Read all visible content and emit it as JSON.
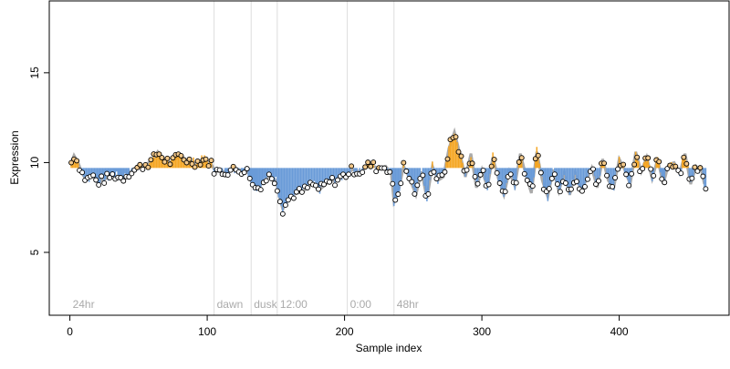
{
  "chart_data": {
    "type": "scatter",
    "xlabel": "Sample index",
    "ylabel": "Expression",
    "xlim": [
      -15,
      480
    ],
    "ylim": [
      1.5,
      19
    ],
    "x_ticks": [
      0,
      100,
      200,
      300,
      400
    ],
    "y_ticks": [
      5,
      10,
      15
    ],
    "baseline": 9.7,
    "regions": [
      {
        "label": "24hr",
        "x": 0
      },
      {
        "label": "dawn",
        "x": 105
      },
      {
        "label": "dusk",
        "x": 132
      },
      {
        "label": "12:00",
        "x": 151
      },
      {
        "label": "0:00",
        "x": 202
      },
      {
        "label": "48hr",
        "x": 236
      }
    ],
    "colors": {
      "above": "#f5a623",
      "below": "#6a9bd8",
      "smooth": "#aaaaaa",
      "grid": "#dddddd",
      "point_fill": "#f4c98a"
    },
    "anchors": [
      [
        1,
        10.0
      ],
      [
        3,
        10.4
      ],
      [
        6,
        10.0
      ],
      [
        9,
        9.4
      ],
      [
        12,
        9.0
      ],
      [
        16,
        9.3
      ],
      [
        20,
        8.9
      ],
      [
        26,
        9.1
      ],
      [
        32,
        9.3
      ],
      [
        38,
        9.1
      ],
      [
        44,
        9.5
      ],
      [
        50,
        9.7
      ],
      [
        55,
        9.9
      ],
      [
        60,
        10.1
      ],
      [
        64,
        10.6
      ],
      [
        68,
        10.2
      ],
      [
        74,
        10.0
      ],
      [
        80,
        10.4
      ],
      [
        86,
        10.1
      ],
      [
        92,
        10.0
      ],
      [
        98,
        10.2
      ],
      [
        103,
        9.9
      ],
      [
        106,
        9.5
      ],
      [
        112,
        9.5
      ],
      [
        120,
        9.6
      ],
      [
        128,
        9.6
      ],
      [
        131,
        9.3
      ],
      [
        133,
        8.7
      ],
      [
        137,
        8.6
      ],
      [
        142,
        9.0
      ],
      [
        146,
        9.3
      ],
      [
        150,
        9.0
      ],
      [
        152,
        8.3
      ],
      [
        155,
        7.4
      ],
      [
        158,
        7.8
      ],
      [
        162,
        8.2
      ],
      [
        170,
        8.4
      ],
      [
        176,
        8.8
      ],
      [
        182,
        8.5
      ],
      [
        188,
        8.9
      ],
      [
        194,
        9.0
      ],
      [
        200,
        9.3
      ],
      [
        206,
        9.6
      ],
      [
        212,
        9.5
      ],
      [
        218,
        9.9
      ],
      [
        224,
        9.7
      ],
      [
        230,
        9.8
      ],
      [
        234,
        9.4
      ],
      [
        236,
        7.8
      ],
      [
        239,
        8.3
      ],
      [
        243,
        9.8
      ],
      [
        247,
        9.2
      ],
      [
        252,
        8.2
      ],
      [
        256,
        9.5
      ],
      [
        260,
        8.0
      ],
      [
        264,
        9.8
      ],
      [
        268,
        9.0
      ],
      [
        272,
        9.2
      ],
      [
        276,
        10.8
      ],
      [
        280,
        11.7
      ],
      [
        284,
        10.5
      ],
      [
        288,
        9.2
      ],
      [
        292,
        10.5
      ],
      [
        296,
        8.6
      ],
      [
        300,
        9.6
      ],
      [
        304,
        8.6
      ],
      [
        308,
        10.3
      ],
      [
        312,
        9.1
      ],
      [
        316,
        8.2
      ],
      [
        320,
        9.5
      ],
      [
        324,
        8.7
      ],
      [
        328,
        10.5
      ],
      [
        332,
        9.3
      ],
      [
        336,
        8.3
      ],
      [
        340,
        10.6
      ],
      [
        344,
        9.0
      ],
      [
        348,
        8.1
      ],
      [
        352,
        9.6
      ],
      [
        356,
        8.4
      ],
      [
        360,
        9.4
      ],
      [
        364,
        8.2
      ],
      [
        368,
        9.4
      ],
      [
        372,
        8.5
      ],
      [
        376,
        9.0
      ],
      [
        380,
        9.7
      ],
      [
        384,
        8.6
      ],
      [
        388,
        10.2
      ],
      [
        392,
        9.0
      ],
      [
        396,
        8.6
      ],
      [
        400,
        10.2
      ],
      [
        404,
        9.6
      ],
      [
        408,
        8.8
      ],
      [
        412,
        10.6
      ],
      [
        416,
        9.5
      ],
      [
        420,
        10.3
      ],
      [
        424,
        9.1
      ],
      [
        428,
        10.2
      ],
      [
        432,
        8.8
      ],
      [
        436,
        9.9
      ],
      [
        440,
        10.0
      ],
      [
        444,
        9.4
      ],
      [
        448,
        10.5
      ],
      [
        452,
        8.8
      ],
      [
        456,
        9.8
      ],
      [
        460,
        9.5
      ],
      [
        462,
        8.8
      ]
    ],
    "n_samples": 463
  }
}
